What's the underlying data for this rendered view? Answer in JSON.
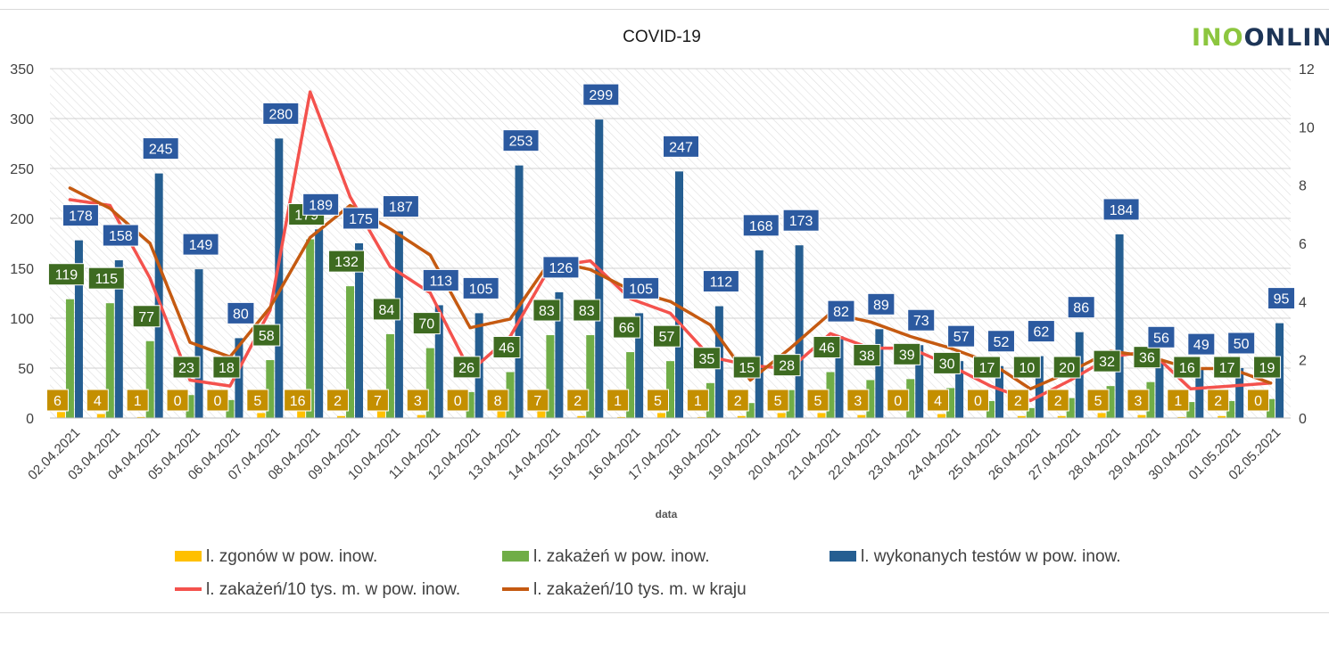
{
  "logo": {
    "part1": "INO",
    "part2": "ONLIN"
  },
  "chart_data": {
    "type": "bar",
    "title": "COVID-19",
    "xlabel": "data",
    "ylabel": "",
    "y2label": "",
    "ylim": [
      0,
      350
    ],
    "y2lim": [
      0,
      12
    ],
    "yticks": [
      0,
      50,
      100,
      150,
      200,
      250,
      300,
      350
    ],
    "y2ticks": [
      0,
      2,
      4,
      6,
      8,
      10,
      12
    ],
    "categories": [
      "02.04.2021",
      "03.04.2021",
      "04.04.2021",
      "05.04.2021",
      "06.04.2021",
      "07.04.2021",
      "08.04.2021",
      "09.04.2021",
      "10.04.2021",
      "11.04.2021",
      "12.04.2021",
      "13.04.2021",
      "14.04.2021",
      "15.04.2021",
      "16.04.2021",
      "17.04.2021",
      "18.04.2021",
      "19.04.2021",
      "20.04.2021",
      "21.04.2021",
      "22.04.2021",
      "23.04.2021",
      "24.04.2021",
      "25.04.2021",
      "26.04.2021",
      "27.04.2021",
      "28.04.2021",
      "29.04.2021",
      "30.04.2021",
      "01.05.2021",
      "02.05.2021"
    ],
    "series": [
      {
        "name": "l. zgonów w pow. inow.",
        "type": "bar",
        "axis": "left",
        "color": "#ffc000",
        "values": [
          6,
          4,
          1,
          0,
          0,
          5,
          16,
          2,
          7,
          3,
          0,
          8,
          7,
          2,
          1,
          5,
          1,
          2,
          5,
          5,
          3,
          0,
          4,
          0,
          2,
          2,
          5,
          3,
          1,
          2,
          0
        ]
      },
      {
        "name": "l. zakażeń w pow. inow.",
        "type": "bar",
        "axis": "left",
        "color": "#70ad47",
        "values": [
          119,
          115,
          77,
          23,
          18,
          58,
          179,
          132,
          84,
          70,
          26,
          46,
          83,
          83,
          66,
          57,
          35,
          15,
          28,
          46,
          38,
          39,
          30,
          17,
          10,
          20,
          32,
          36,
          16,
          17,
          19
        ]
      },
      {
        "name": "l. wykonanych testów w pow. inow.",
        "type": "bar",
        "axis": "left",
        "color": "#255e91",
        "values": [
          178,
          158,
          245,
          149,
          80,
          280,
          189,
          175,
          187,
          113,
          105,
          253,
          126,
          299,
          105,
          247,
          112,
          168,
          173,
          82,
          89,
          73,
          57,
          52,
          62,
          86,
          184,
          56,
          49,
          50,
          95
        ]
      },
      {
        "name": "l. zakażeń/10 tys. m. w pow. inow.",
        "type": "line",
        "axis": "right",
        "color": "#f4524d",
        "values": [
          7.5,
          7.3,
          4.8,
          1.3,
          1.1,
          3.7,
          11.2,
          7.6,
          5.2,
          4.3,
          1.6,
          2.8,
          5.2,
          5.4,
          4.1,
          3.6,
          2.1,
          1.8,
          1.7,
          2.9,
          2.4,
          2.4,
          1.8,
          1.1,
          0.6,
          1.3,
          2.1,
          2.3,
          1.0,
          1.1,
          1.2
        ]
      },
      {
        "name": "l. zakażeń/10 tys. m. w kraju",
        "type": "line",
        "axis": "right",
        "color": "#c55a11",
        "values": [
          7.9,
          7.2,
          6.0,
          2.6,
          2.1,
          3.8,
          6.2,
          7.3,
          6.5,
          5.6,
          3.1,
          3.4,
          5.4,
          5.1,
          4.4,
          4.0,
          3.2,
          1.3,
          2.4,
          3.6,
          3.3,
          2.8,
          2.4,
          1.9,
          1.0,
          1.6,
          2.3,
          2.1,
          1.7,
          1.7,
          1.2
        ]
      }
    ]
  }
}
